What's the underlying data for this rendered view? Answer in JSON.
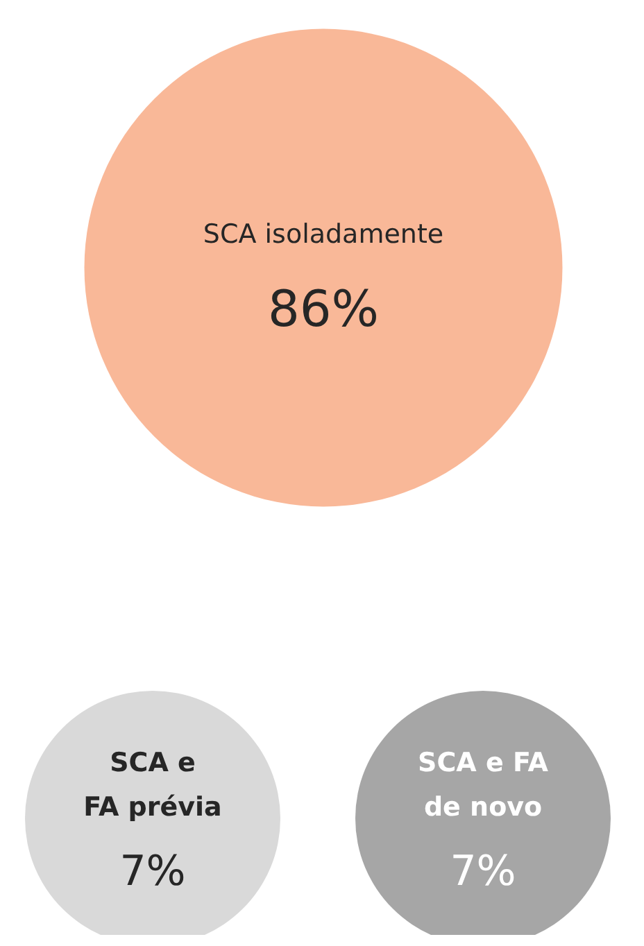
{
  "chart_data": {
    "type": "other",
    "categories": [
      "SCA isoladamente",
      "SCA e FA prévia",
      "SCA e FA de novo"
    ],
    "values": [
      86,
      7,
      7
    ],
    "value_labels": [
      "86%",
      "7%",
      "7%"
    ],
    "colors": [
      "#f9b898",
      "#d9d9d9",
      "#a6a6a6"
    ]
  }
}
